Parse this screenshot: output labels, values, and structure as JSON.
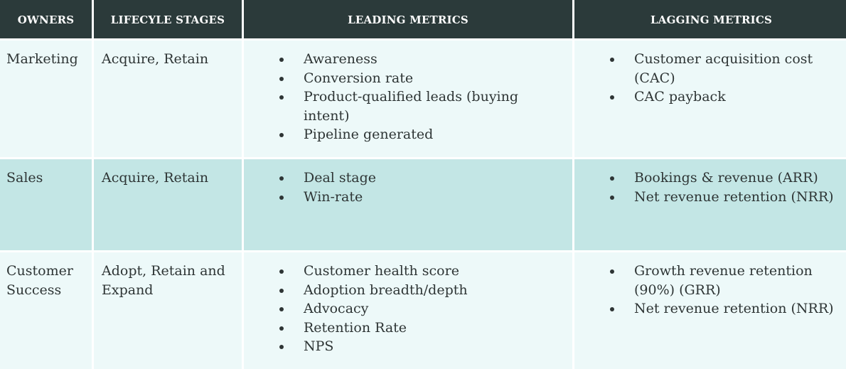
{
  "headers": {
    "owners": "OWNERS",
    "lifecycle": "LIFECYLE STAGES",
    "leading": "LEADING METRICS",
    "lagging": "LAGGING METRICS"
  },
  "rows": [
    {
      "owner": "Marketing",
      "stages": "Acquire, Retain",
      "leading": [
        "Awareness",
        "Conversion rate",
        "Product-qualified leads (buying intent)",
        "Pipeline generated"
      ],
      "lagging": [
        "Customer acquisition cost (CAC)",
        "CAC payback"
      ]
    },
    {
      "owner": "Sales",
      "stages": "Acquire, Retain",
      "leading": [
        "Deal stage",
        "Win-rate"
      ],
      "lagging": [
        "Bookings & revenue (ARR)",
        "Net revenue retention (NRR)"
      ]
    },
    {
      "owner": "Customer Success",
      "stages": "Adopt, Retain and Expand",
      "leading": [
        "Customer health score",
        "Adoption breadth/depth",
        "Advocacy",
        "Retention Rate",
        "NPS"
      ],
      "lagging": [
        "Growth revenue retention (90%) (GRR)",
        "Net revenue retention (NRR)"
      ]
    }
  ],
  "colors": {
    "header_bg": "#2b3a3a",
    "row_light": "#edf9f9",
    "row_teal": "#c3e6e5",
    "text": "#2e3535"
  }
}
